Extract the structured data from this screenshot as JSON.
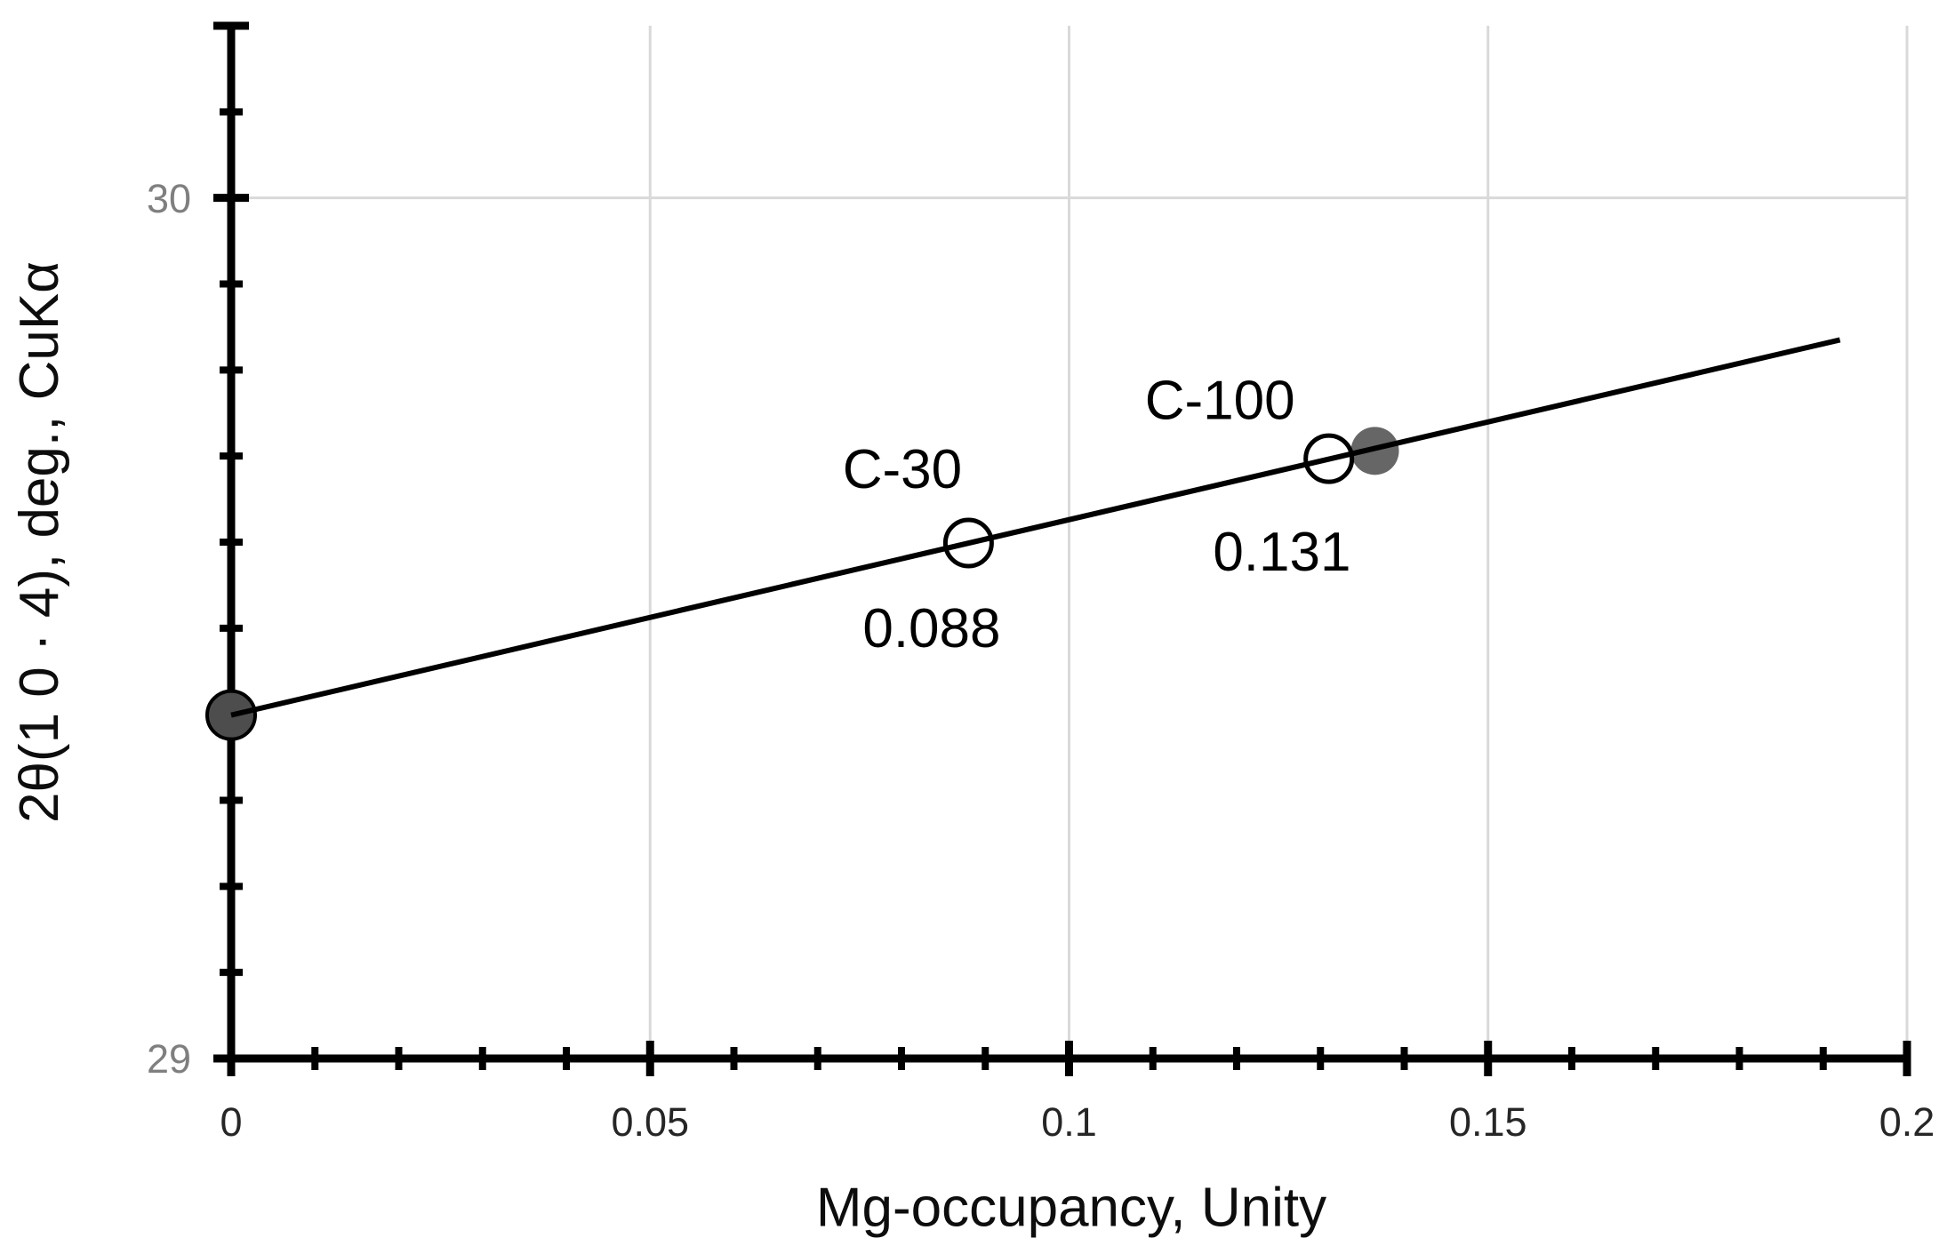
{
  "chart_data": {
    "type": "scatter",
    "title": "",
    "xlabel": "Mg-occupancy, Unity",
    "ylabel": "2θ(1 0 · 4), deg., CuKα",
    "xlim": [
      0,
      0.2
    ],
    "ylim": [
      29,
      30.2
    ],
    "grid": {
      "x_values": [
        0.05,
        0.1,
        0.15,
        0.2
      ],
      "y_values": [
        30
      ]
    },
    "x_ticks": {
      "major": [
        0,
        0.05,
        0.1,
        0.15,
        0.2
      ],
      "minor": [
        0.01,
        0.02,
        0.03,
        0.04,
        0.06,
        0.07,
        0.08,
        0.09,
        0.11,
        0.12,
        0.13,
        0.14,
        0.16,
        0.17,
        0.18,
        0.19
      ],
      "labels": [
        {
          "v": 0,
          "t": "0"
        },
        {
          "v": 0.05,
          "t": "0.05"
        },
        {
          "v": 0.1,
          "t": "0.1"
        },
        {
          "v": 0.15,
          "t": "0.15"
        },
        {
          "v": 0.2,
          "t": "0.2"
        }
      ]
    },
    "y_ticks": {
      "major": [
        29,
        30,
        30.2
      ],
      "minor": [
        29.1,
        29.2,
        29.3,
        29.4,
        29.5,
        29.6,
        29.7,
        29.8,
        29.9,
        30.1
      ],
      "labels": [
        {
          "v": 29,
          "t": "29"
        },
        {
          "v": 30,
          "t": "30"
        }
      ]
    },
    "trendline": {
      "x1": 0,
      "y1": 29.399,
      "x2": 0.192,
      "y2": 29.835
    },
    "points": [
      {
        "id": "reference-0",
        "x": 0,
        "y": 29.399,
        "style": "filled",
        "fill": "#4d4d4d",
        "stroke": "#000000"
      },
      {
        "id": "reference-136",
        "x": 0.1365,
        "y": 29.706,
        "style": "filled",
        "fill": "#666666",
        "stroke": "none"
      },
      {
        "id": "C-30",
        "x": 0.088,
        "y": 29.599,
        "style": "open",
        "label": "C-30",
        "label_x": 0.0801,
        "label_y": 29.686,
        "value_label": "0.088",
        "value_x": 0.0836,
        "value_y": 29.501
      },
      {
        "id": "C-100",
        "x": 0.131,
        "y": 29.697,
        "style": "open",
        "label": "C-100",
        "label_x": 0.118,
        "label_y": 29.766,
        "value_label": "0.131",
        "value_x": 0.1254,
        "value_y": 29.59
      }
    ],
    "style": {
      "axis_color": "#000000",
      "grid_color": "#d9d9d9",
      "y_tick_label_color": "#7f7f7f",
      "x_tick_label_color": "#262626",
      "trendline_color": "#000000",
      "open_point_stroke": "#000000"
    },
    "legend": "none"
  }
}
